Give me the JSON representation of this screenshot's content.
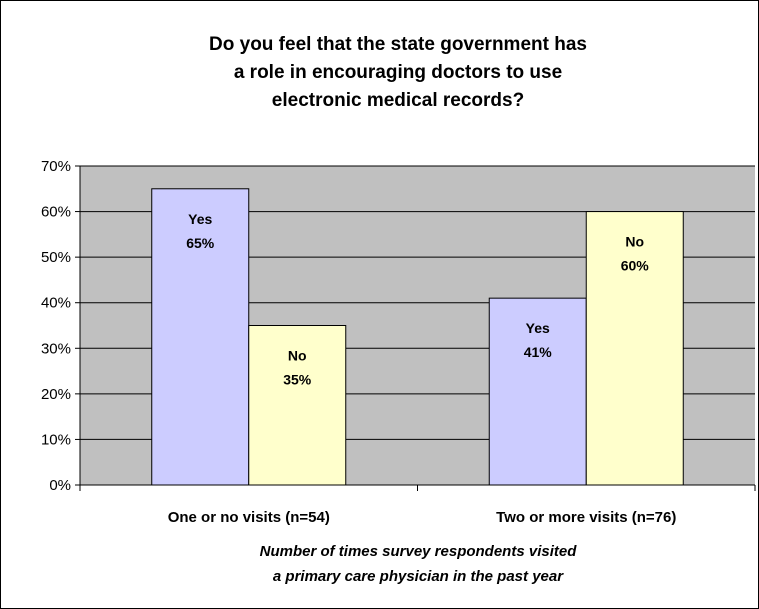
{
  "chart_data": {
    "type": "bar",
    "title_lines": [
      "Do you feel that the state government has",
      "a role in encouraging doctors to use",
      "electronic medical records?"
    ],
    "categories": [
      "One or no visits (n=54)",
      "Two or more visits (n=76)"
    ],
    "series": [
      {
        "name": "Yes",
        "values": [
          65,
          41
        ],
        "labels": [
          "65%",
          "41%"
        ],
        "color": "#ccccff"
      },
      {
        "name": "No",
        "values": [
          35,
          60
        ],
        "labels": [
          "35%",
          "60%"
        ],
        "color": "#ffffcc"
      }
    ],
    "xlabel_lines": [
      "Number of times survey respondents visited",
      "a primary care physician in the past year"
    ],
    "ylabel": "",
    "ylim": [
      0,
      70
    ],
    "yticks": [
      0,
      10,
      20,
      30,
      40,
      50,
      60,
      70
    ],
    "ytick_labels": [
      "0%",
      "10%",
      "20%",
      "30%",
      "40%",
      "50%",
      "60%",
      "70%"
    ],
    "grid": true,
    "plot_background": "#c0c0c0",
    "legend": "none"
  }
}
